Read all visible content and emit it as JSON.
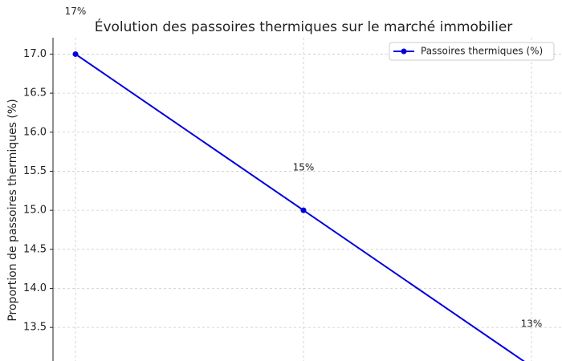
{
  "chart_data": {
    "type": "line",
    "title": "Évolution des passoires thermiques sur le marché immobilier",
    "ylabel": "Proportion de passoires thermiques (%)",
    "categories": [
      null,
      null,
      null
    ],
    "series": [
      {
        "name": "Passoires thermiques (%)",
        "color": "#0000dd",
        "values": [
          17,
          15,
          13
        ],
        "value_labels": [
          "17%",
          "15%",
          "13%"
        ]
      }
    ],
    "ylim": [
      13.07,
      17.21
    ],
    "yticks": [
      13.5,
      {
        "value": 14,
        "label": "14.0"
      },
      14.5,
      {
        "value": 15,
        "label": "15.0"
      },
      15.5,
      {
        "value": 16,
        "label": "16.0"
      },
      16.5,
      {
        "value": 17,
        "label": "17.0"
      }
    ],
    "grid": true,
    "legend": "upper right"
  }
}
